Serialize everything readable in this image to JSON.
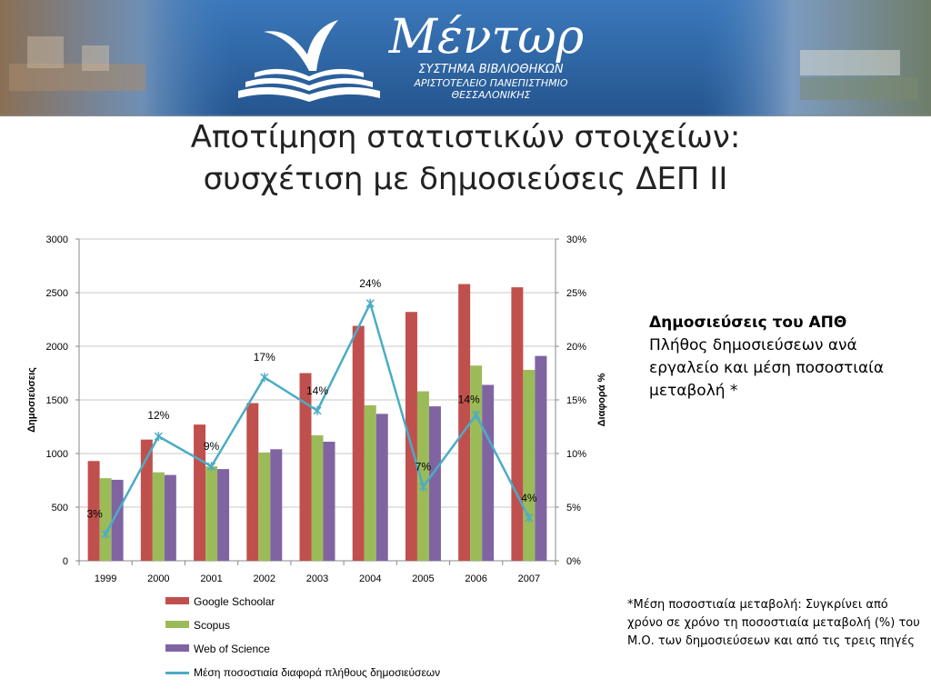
{
  "banner": {
    "logo_text": "Μέντωρ",
    "subtitle_lines": [
      "ΣΥΣΤΗΜΑ ΒΙΒΛΙΟΘΗΚΩΝ",
      "ΑΡΙΣΤΟΤΕΛΕΙΟ ΠΑΝΕΠΙΣΤΗΜΙΟ",
      "ΘΕΣΣΑΛΟΝΙΚΗΣ"
    ]
  },
  "slide": {
    "title_line1": "Αποτίμηση στατιστικών στοιχείων:",
    "title_line2": "συσχέτιση με δημοσιεύσεις ΔΕΠ ΙΙ"
  },
  "side_text": {
    "heading": "Δημοσιεύσεις του ΑΠΘ",
    "body": "Πλήθος δημοσιεύσεων ανά εργαλείο και μέση ποσοστιαία μεταβολή *"
  },
  "footnote": "*Μέση ποσοστιαία μεταβολή: Συγκρίνει από χρόνο σε χρόνο τη ποσοστιαία μεταβολή (%) του Μ.Ο. των δημοσιεύσεων και από τις τρεις πηγές",
  "colors": {
    "google": "#c0504d",
    "scopus": "#9bbb59",
    "wos": "#8064a2",
    "line": "#4bacc6",
    "banner": "#2f6aa8"
  },
  "chart_data": {
    "type": "bar",
    "categories": [
      "1999",
      "2000",
      "2001",
      "2002",
      "2003",
      "2004",
      "2005",
      "2006",
      "2007"
    ],
    "series": [
      {
        "name": "Google Schoolar",
        "values": [
          930,
          1130,
          1270,
          1470,
          1750,
          2190,
          2320,
          2580,
          2550
        ]
      },
      {
        "name": "Scopus",
        "values": [
          770,
          825,
          880,
          1010,
          1170,
          1450,
          1580,
          1820,
          1780
        ]
      },
      {
        "name": "Web of Science",
        "values": [
          755,
          800,
          855,
          1040,
          1110,
          1370,
          1440,
          1640,
          1910
        ]
      }
    ],
    "line_series": {
      "name": "Μέση ποσοστιαία διαφορά πλήθους δημοσιεύσεων",
      "axis": "right",
      "values": [
        2.5,
        11.6,
        8.8,
        17.1,
        14.0,
        24.0,
        6.9,
        13.6,
        4.0
      ],
      "labels": [
        "3%",
        "12%",
        "9%",
        "17%",
        "14%",
        "24%",
        "7%",
        "14%",
        "4%"
      ]
    },
    "ylabel": "Δημοσιεύσεις",
    "y2label": "Διαφορά %",
    "ylim": [
      0,
      3000
    ],
    "yticks": [
      "0",
      "500",
      "1000",
      "1500",
      "2000",
      "2500",
      "3000"
    ],
    "y2lim": [
      0,
      30
    ],
    "y2ticks": [
      "0%",
      "5%",
      "10%",
      "15%",
      "20%",
      "25%",
      "30%"
    ],
    "grid": true,
    "legend": "bottom"
  }
}
